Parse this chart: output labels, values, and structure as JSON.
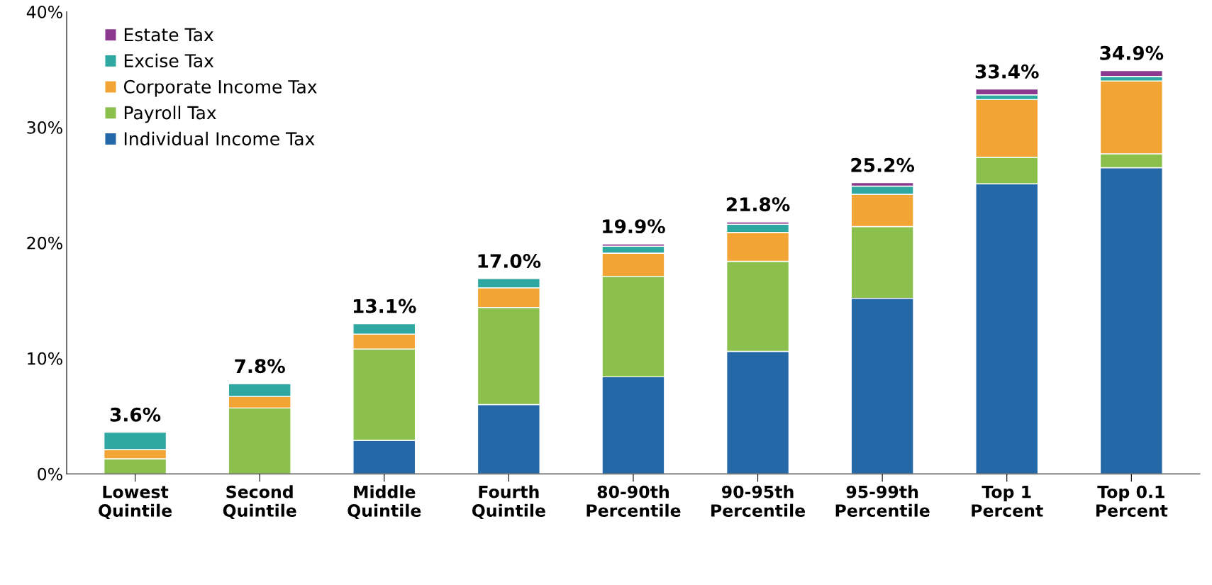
{
  "chart_data": {
    "type": "bar",
    "stacked": true,
    "categories": [
      "Lowest\nQuintile",
      "Second\nQuintile",
      "Middle\nQuintile",
      "Fourth\nQuintile",
      "80-90th\nPercentile",
      "90-95th\nPercentile",
      "95-99th\nPercentile",
      "Top 1\nPercent",
      "Top 0.1\nPercent"
    ],
    "series": [
      {
        "name": "Individual Income Tax",
        "color": "#2568a8",
        "values": [
          null,
          null,
          2.9,
          6.0,
          8.4,
          10.6,
          15.2,
          25.1,
          26.5
        ]
      },
      {
        "name": "Payroll Tax",
        "color": "#8bc04d",
        "values": [
          1.3,
          5.7,
          7.9,
          8.4,
          8.7,
          7.8,
          6.2,
          2.3,
          1.2
        ]
      },
      {
        "name": "Corporate Income Tax",
        "color": "#f2a535",
        "values": [
          0.8,
          1.0,
          1.3,
          1.7,
          2.0,
          2.5,
          2.8,
          5.0,
          6.3
        ]
      },
      {
        "name": "Excise Tax",
        "color": "#2ea8a0",
        "values": [
          1.5,
          1.1,
          0.9,
          0.8,
          0.6,
          0.7,
          0.7,
          0.4,
          0.4
        ]
      },
      {
        "name": "Estate Tax",
        "color": "#8b3a8f",
        "values": [
          null,
          null,
          null,
          null,
          0.2,
          0.2,
          0.3,
          0.5,
          0.5
        ]
      }
    ],
    "totals": [
      "3.6%",
      "7.8%",
      "13.1%",
      "17.0%",
      "19.9%",
      "21.8%",
      "25.2%",
      "33.4%",
      "34.9%"
    ],
    "ylim": [
      0,
      40
    ],
    "yticks": [
      {
        "value": 0,
        "label": "0%"
      },
      {
        "value": 10,
        "label": "10%"
      },
      {
        "value": 20,
        "label": "20%"
      },
      {
        "value": 30,
        "label": "30%"
      },
      {
        "value": 40,
        "label": "40%"
      }
    ],
    "legend": "top left",
    "grid": false
  }
}
